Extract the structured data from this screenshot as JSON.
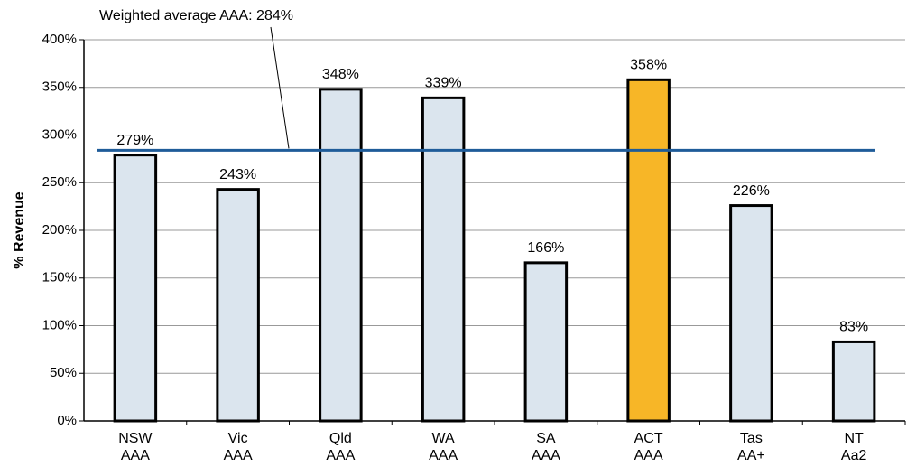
{
  "chart_data": {
    "type": "bar",
    "y_label": "% Revenue",
    "categories": [
      [
        "NSW",
        "AAA"
      ],
      [
        "Vic",
        "AAA"
      ],
      [
        "Qld",
        "AAA"
      ],
      [
        "WA",
        "AAA"
      ],
      [
        "SA",
        "AAA"
      ],
      [
        "ACT",
        "AAA"
      ],
      [
        "Tas",
        "AA+"
      ],
      [
        "NT",
        "Aa2"
      ]
    ],
    "values": [
      279,
      243,
      348,
      339,
      166,
      358,
      226,
      83
    ],
    "value_labels": [
      "279%",
      "243%",
      "348%",
      "339%",
      "166%",
      "358%",
      "226%",
      "83%"
    ],
    "colors": [
      "#dbe5ee",
      "#dbe5ee",
      "#dbe5ee",
      "#dbe5ee",
      "#dbe5ee",
      "#f7b627",
      "#dbe5ee",
      "#dbe5ee"
    ],
    "reference_line": {
      "value": 284,
      "label": "Weighted average AAA: 284%",
      "color": "#1f5c99"
    },
    "ylim": [
      0,
      400
    ],
    "yticks": [
      {
        "value": 0,
        "label": "0%"
      },
      {
        "value": 50,
        "label": "50%"
      },
      {
        "value": 100,
        "label": "100%"
      },
      {
        "value": 150,
        "label": "150%"
      },
      {
        "value": 200,
        "label": "200%"
      },
      {
        "value": 250,
        "label": "250%"
      },
      {
        "value": 300,
        "label": "300%"
      },
      {
        "value": 350,
        "label": "350%"
      },
      {
        "value": 400,
        "label": "400%"
      }
    ],
    "grid": true
  }
}
